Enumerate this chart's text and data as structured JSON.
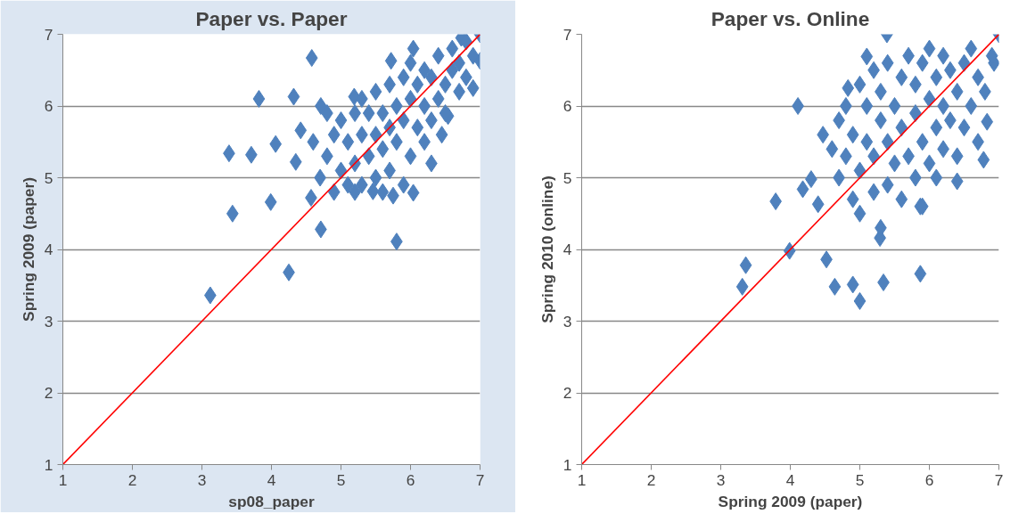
{
  "chart_data": [
    {
      "type": "scatter",
      "title": "Paper vs. Paper",
      "xlabel": "sp08_paper",
      "ylabel": "Spring 2009 (paper)",
      "xlim": [
        1,
        7
      ],
      "ylim": [
        1,
        7
      ],
      "xticks": [
        1,
        2,
        3,
        4,
        5,
        6,
        7
      ],
      "yticks": [
        1,
        2,
        3,
        4,
        5,
        6,
        7
      ],
      "grid": "y",
      "marker": "diamond",
      "series": [
        {
          "color": "#4f81bd",
          "x": [
            3.12,
            3.39,
            3.44,
            3.71,
            3.82,
            4.06,
            3.99,
            4.25,
            4.32,
            4.58,
            5.8,
            4.71,
            4.42,
            4.35,
            7.0,
            7.0,
            6.9,
            6.73,
            6.45,
            6.04,
            5.75,
            5.46,
            4.57,
            6.04,
            5.72,
            4.71,
            5.19,
            6.54,
            4.8,
            4.9,
            5.0,
            5.0,
            5.1,
            5.1,
            5.2,
            5.2,
            5.3,
            5.3,
            5.3,
            5.4,
            5.4,
            5.5,
            5.5,
            5.5,
            5.6,
            5.6,
            5.7,
            5.7,
            5.7,
            5.8,
            5.8,
            5.9,
            5.9,
            5.9,
            6.0,
            6.0,
            6.0,
            6.1,
            6.1,
            6.2,
            6.2,
            6.2,
            6.3,
            6.3,
            6.4,
            6.4,
            6.5,
            6.5,
            6.6,
            6.6,
            6.7,
            6.7,
            6.8,
            6.8,
            6.9,
            4.7,
            4.6,
            4.9,
            5.6,
            5.2,
            6.3,
            4.8
          ],
          "values": [
            3.36,
            5.34,
            4.5,
            5.32,
            6.1,
            5.47,
            4.66,
            3.68,
            6.13,
            6.67,
            4.11,
            4.28,
            5.66,
            5.22,
            7.0,
            6.63,
            6.25,
            6.95,
            5.6,
            4.79,
            4.75,
            4.81,
            4.72,
            6.8,
            6.63,
            6.0,
            6.13,
            5.86,
            5.3,
            5.6,
            5.1,
            5.8,
            4.9,
            5.5,
            5.9,
            5.2,
            4.9,
            5.6,
            6.1,
            5.3,
            5.9,
            5.0,
            5.6,
            6.2,
            5.4,
            5.9,
            5.1,
            5.7,
            6.3,
            5.5,
            6.0,
            4.9,
            5.8,
            6.4,
            5.3,
            6.1,
            6.6,
            5.7,
            6.3,
            5.5,
            6.0,
            6.5,
            5.8,
            6.4,
            6.1,
            6.7,
            6.3,
            5.9,
            6.5,
            6.8,
            6.2,
            6.6,
            6.4,
            6.9,
            6.7,
            5.0,
            5.5,
            4.8,
            4.8,
            4.8,
            5.2,
            5.9
          ]
        },
        {
          "type": "line",
          "color": "#ff0000",
          "marker": "none",
          "x": [
            1,
            7
          ],
          "values": [
            1,
            7
          ]
        }
      ]
    },
    {
      "type": "scatter",
      "title": "Paper vs. Online",
      "xlabel": "Spring 2009 (paper)",
      "ylabel": "Spring 2010 (online)",
      "xlim": [
        1,
        7
      ],
      "ylim": [
        1,
        7
      ],
      "xticks": [
        1,
        2,
        3,
        4,
        5,
        6,
        7
      ],
      "yticks": [
        1,
        2,
        3,
        4,
        5,
        6,
        7
      ],
      "grid": "y",
      "marker": "diamond",
      "series": [
        {
          "color": "#4f81bd",
          "x": [
            3.31,
            3.36,
            3.79,
            4.11,
            3.99,
            5.0,
            5.87,
            4.64,
            4.9,
            5.34,
            4.52,
            4.3,
            4.18,
            5.39,
            7.0,
            6.4,
            6.78,
            5.1,
            5.87,
            6.93,
            5.29,
            4.4,
            4.83,
            4.47,
            6.83,
            4.6,
            4.7,
            4.7,
            4.8,
            4.8,
            4.9,
            4.9,
            5.0,
            5.0,
            5.0,
            5.1,
            5.1,
            5.2,
            5.2,
            5.2,
            5.3,
            5.3,
            5.4,
            5.4,
            5.4,
            5.5,
            5.5,
            5.6,
            5.6,
            5.6,
            5.7,
            5.7,
            5.8,
            5.8,
            5.8,
            5.9,
            5.9,
            6.0,
            6.0,
            6.0,
            6.1,
            6.1,
            6.2,
            6.2,
            6.2,
            6.3,
            6.3,
            6.4,
            6.4,
            6.5,
            6.5,
            6.6,
            6.6,
            6.7,
            6.7,
            6.8,
            6.9,
            5.9,
            6.1,
            5.3
          ],
          "values": [
            3.48,
            3.78,
            4.67,
            6.0,
            3.98,
            3.28,
            3.66,
            3.48,
            3.51,
            3.54,
            3.86,
            4.98,
            4.84,
            7.0,
            7.0,
            4.95,
            5.25,
            6.69,
            4.6,
            6.6,
            4.16,
            4.63,
            6.25,
            5.6,
            5.78,
            5.4,
            5.0,
            5.8,
            5.3,
            6.0,
            4.7,
            5.6,
            5.1,
            6.3,
            4.5,
            5.5,
            6.0,
            4.8,
            5.3,
            6.5,
            5.8,
            6.2,
            4.9,
            5.5,
            6.6,
            5.2,
            6.0,
            4.7,
            5.7,
            6.4,
            5.3,
            6.7,
            5.0,
            5.9,
            6.3,
            5.5,
            6.6,
            5.2,
            6.1,
            6.8,
            5.7,
            6.4,
            5.4,
            6.0,
            6.7,
            5.8,
            6.5,
            5.3,
            6.2,
            6.6,
            5.7,
            6.0,
            6.8,
            6.4,
            5.5,
            6.2,
            6.7,
            4.6,
            5.0,
            4.3
          ]
        },
        {
          "type": "line",
          "color": "#ff0000",
          "marker": "none",
          "x": [
            1,
            7
          ],
          "values": [
            1,
            7
          ]
        }
      ]
    }
  ]
}
